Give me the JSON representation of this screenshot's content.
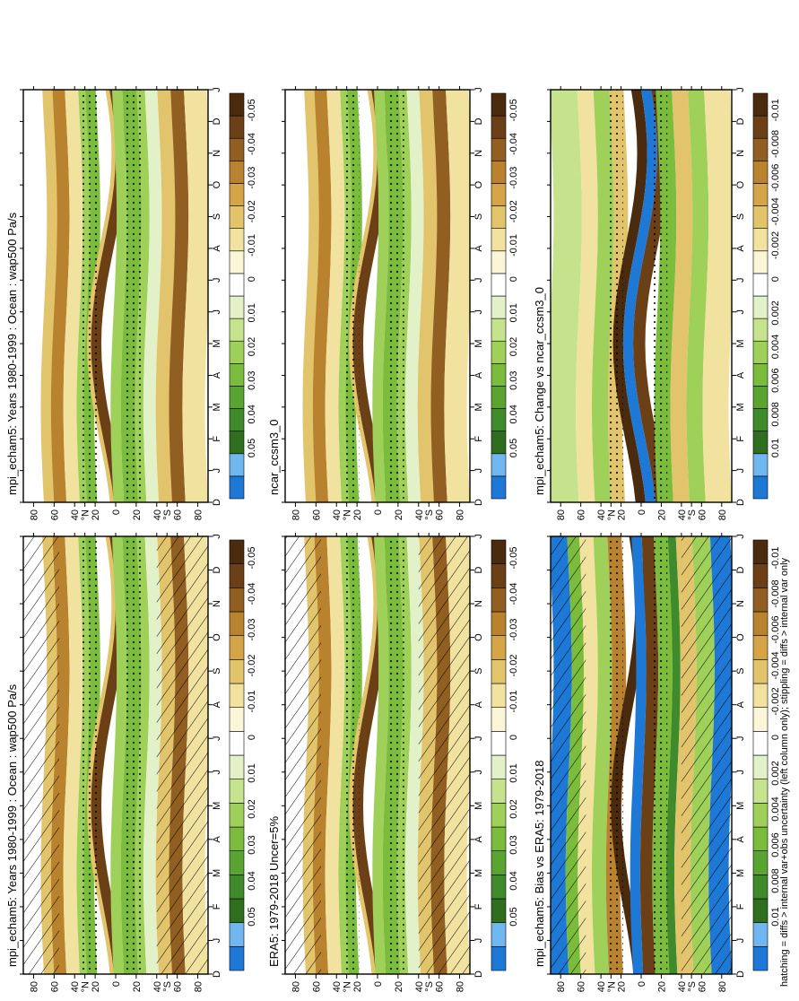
{
  "footnote": "hatching = diffs > internal var+obs uncertainty (left column only); stippling = diffs > internal var only",
  "month_labels": [
    "D",
    "J",
    "F",
    "M",
    "A",
    "M",
    "J",
    "J",
    "A",
    "S",
    "O",
    "N",
    "D",
    "J"
  ],
  "lat_labels": [
    "80",
    "60",
    "40",
    "°N",
    "20",
    "0",
    "20",
    "40",
    "°S",
    "60",
    "80"
  ],
  "colors": {
    "levels": [
      "#1e78d6",
      "#6fb7ee",
      "#2f6e1e",
      "#3f8a2a",
      "#5aa432",
      "#7cbc3c",
      "#9fd05a",
      "#c4e38c",
      "#e3f1c8",
      "#ffffff",
      "#fbf6d8",
      "#f1e2a0",
      "#e2c46c",
      "#d4a447",
      "#b9822f",
      "#925f22",
      "#6b4016",
      "#4a2b0e"
    ]
  },
  "chart_data": [
    {
      "type": "heatmap",
      "title": "mpi_echam5: Years 1980-1999 : Ocean : wap500 Pa/s",
      "colorbar_labels": [
        "0.05",
        "0.04",
        "0.03",
        "0.02",
        "0.01",
        "0",
        "-0.01",
        "-0.02",
        "-0.03",
        "-0.04",
        "-0.05"
      ],
      "overlay": "hatching and stippling",
      "x_categories": [
        "D",
        "J",
        "F",
        "M",
        "A",
        "M",
        "J",
        "J",
        "A",
        "S",
        "O",
        "N",
        "D",
        "J"
      ],
      "y_range": [
        -90,
        90
      ]
    },
    {
      "type": "heatmap",
      "title": "mpi_echam5: Years 1980-1999 : Ocean : wap500 Pa/s",
      "colorbar_labels": [
        "0.05",
        "0.04",
        "0.03",
        "0.02",
        "0.01",
        "0",
        "-0.01",
        "-0.02",
        "-0.03",
        "-0.04",
        "-0.05"
      ],
      "overlay": "stippling",
      "x_categories": [
        "D",
        "J",
        "F",
        "M",
        "A",
        "M",
        "J",
        "J",
        "A",
        "S",
        "O",
        "N",
        "D",
        "J"
      ],
      "y_range": [
        -90,
        90
      ]
    },
    {
      "type": "heatmap",
      "title": "ERA5: 1979-2018 Uncer=5%",
      "colorbar_labels": [
        "0.05",
        "0.04",
        "0.03",
        "0.02",
        "0.01",
        "0",
        "-0.01",
        "-0.02",
        "-0.03",
        "-0.04",
        "-0.05"
      ],
      "overlay": "hatching and stippling",
      "x_categories": [
        "D",
        "J",
        "F",
        "M",
        "A",
        "M",
        "J",
        "J",
        "A",
        "S",
        "O",
        "N",
        "D",
        "J"
      ],
      "y_range": [
        -90,
        90
      ]
    },
    {
      "type": "heatmap",
      "title": "ncar_ccsm3_0",
      "colorbar_labels": [
        "0.05",
        "0.04",
        "0.03",
        "0.02",
        "0.01",
        "0",
        "-0.01",
        "-0.02",
        "-0.03",
        "-0.04",
        "-0.05"
      ],
      "overlay": "stippling",
      "x_categories": [
        "D",
        "J",
        "F",
        "M",
        "A",
        "M",
        "J",
        "J",
        "A",
        "S",
        "O",
        "N",
        "D",
        "J"
      ],
      "y_range": [
        -90,
        90
      ]
    },
    {
      "type": "heatmap",
      "title": "mpi_echam5: Bias vs ERA5: 1979-2018",
      "colorbar_labels": [
        "0.01",
        "0.008",
        "0.006",
        "0.004",
        "0.002",
        "0",
        "-0.002",
        "-0.004",
        "-0.006",
        "-0.008",
        "-0.01"
      ],
      "overlay": "hatching and stippling",
      "x_categories": [
        "D",
        "J",
        "F",
        "M",
        "A",
        "M",
        "J",
        "J",
        "A",
        "S",
        "O",
        "N",
        "D",
        "J"
      ],
      "y_range": [
        -90,
        90
      ]
    },
    {
      "type": "heatmap",
      "title": "mpi_echam5: Change vs ncar_ccsm3_0",
      "colorbar_labels": [
        "0.01",
        "0.008",
        "0.006",
        "0.004",
        "0.002",
        "0",
        "-0.002",
        "-0.004",
        "-0.006",
        "-0.008",
        "-0.01"
      ],
      "overlay": "stippling",
      "x_categories": [
        "D",
        "J",
        "F",
        "M",
        "A",
        "M",
        "J",
        "J",
        "A",
        "S",
        "O",
        "N",
        "D",
        "J"
      ],
      "y_range": [
        -90,
        90
      ]
    }
  ]
}
